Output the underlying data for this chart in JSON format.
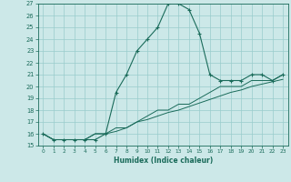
{
  "xlabel": "Humidex (Indice chaleur)",
  "bg_color": "#cce8e8",
  "grid_color": "#99cccc",
  "line_color": "#1a6b5a",
  "x_data": [
    0,
    1,
    2,
    3,
    4,
    5,
    6,
    7,
    8,
    9,
    10,
    11,
    12,
    13,
    14,
    15,
    16,
    17,
    18,
    19,
    20,
    21,
    22,
    23
  ],
  "main_y": [
    16.0,
    15.5,
    15.5,
    15.5,
    15.5,
    15.5,
    16.0,
    19.5,
    21.0,
    23.0,
    24.0,
    25.0,
    27.0,
    27.0,
    26.5,
    24.5,
    21.0,
    20.5,
    20.5,
    20.5,
    21.0,
    21.0,
    20.5,
    21.0
  ],
  "line2_y": [
    16.0,
    15.5,
    15.5,
    15.5,
    15.5,
    16.0,
    16.0,
    16.5,
    16.5,
    17.0,
    17.5,
    18.0,
    18.0,
    18.5,
    18.5,
    19.0,
    19.5,
    20.0,
    20.0,
    20.0,
    20.5,
    20.5,
    20.5,
    21.0
  ],
  "line3_y": [
    16.0,
    15.5,
    15.5,
    15.5,
    15.5,
    16.0,
    16.0,
    16.2,
    16.5,
    17.0,
    17.2,
    17.5,
    17.8,
    18.0,
    18.3,
    18.6,
    18.9,
    19.2,
    19.5,
    19.7,
    20.0,
    20.2,
    20.4,
    20.6
  ],
  "ylim": [
    15,
    27
  ],
  "xlim": [
    -0.5,
    23.5
  ],
  "yticks": [
    15,
    16,
    17,
    18,
    19,
    20,
    21,
    22,
    23,
    24,
    25,
    26,
    27
  ],
  "xticks": [
    0,
    1,
    2,
    3,
    4,
    5,
    6,
    7,
    8,
    9,
    10,
    11,
    12,
    13,
    14,
    15,
    16,
    17,
    18,
    19,
    20,
    21,
    22,
    23
  ]
}
